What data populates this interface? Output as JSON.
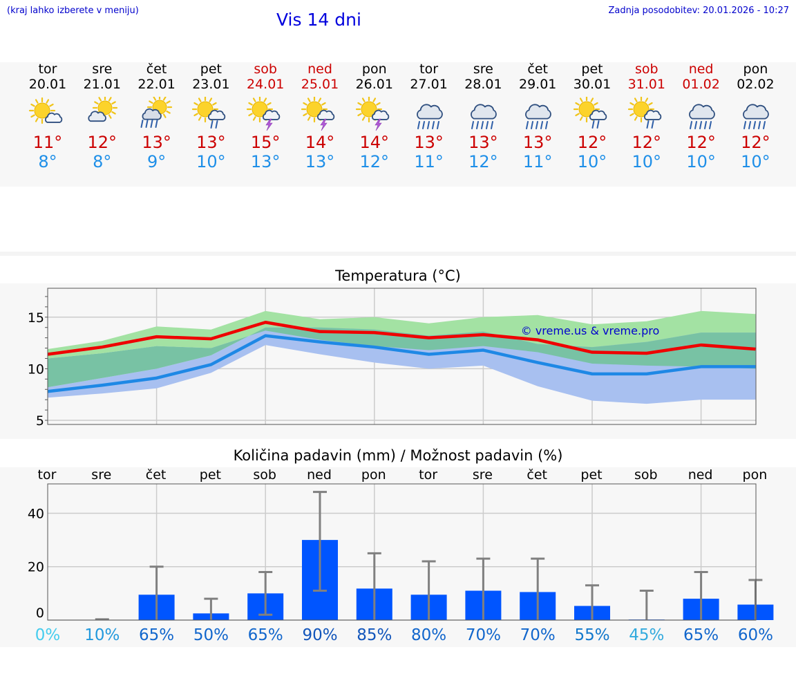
{
  "header": {
    "hint": "(kraj lahko izberete v meniju)",
    "title": "Vis 14 dni",
    "updated": "Zadnja posodobitev: 20.01.2026 - 10:27"
  },
  "days": [
    {
      "name": "tor",
      "date": "20.01",
      "icon": "sun-cloud-icon",
      "tmax": "11°",
      "tmin": "8°",
      "weekend": false
    },
    {
      "name": "sre",
      "date": "21.01",
      "icon": "cloud-sun-icon",
      "tmax": "12°",
      "tmin": "8°",
      "weekend": false
    },
    {
      "name": "čet",
      "date": "22.01",
      "icon": "sun-cloud-rain-icon",
      "tmax": "13°",
      "tmin": "9°",
      "weekend": false
    },
    {
      "name": "pet",
      "date": "23.01",
      "icon": "sun-cloud-light-rain-icon",
      "tmax": "13°",
      "tmin": "10°",
      "weekend": false
    },
    {
      "name": "sob",
      "date": "24.01",
      "icon": "sun-cloud-thunder-icon",
      "tmax": "15°",
      "tmin": "13°",
      "weekend": true
    },
    {
      "name": "ned",
      "date": "25.01",
      "icon": "sun-cloud-thunder-icon",
      "tmax": "14°",
      "tmin": "13°",
      "weekend": true
    },
    {
      "name": "pon",
      "date": "26.01",
      "icon": "sun-cloud-thunder-icon",
      "tmax": "14°",
      "tmin": "12°",
      "weekend": false
    },
    {
      "name": "tor",
      "date": "27.01",
      "icon": "rain-cloud-icon",
      "tmax": "13°",
      "tmin": "11°",
      "weekend": false
    },
    {
      "name": "sre",
      "date": "28.01",
      "icon": "rain-cloud-icon",
      "tmax": "13°",
      "tmin": "12°",
      "weekend": false
    },
    {
      "name": "čet",
      "date": "29.01",
      "icon": "rain-cloud-icon",
      "tmax": "13°",
      "tmin": "11°",
      "weekend": false
    },
    {
      "name": "pet",
      "date": "30.01",
      "icon": "sun-cloud-light-rain-icon",
      "tmax": "12°",
      "tmin": "10°",
      "weekend": false
    },
    {
      "name": "sob",
      "date": "31.01",
      "icon": "sun-cloud-light-rain-icon",
      "tmax": "12°",
      "tmin": "10°",
      "weekend": true
    },
    {
      "name": "ned",
      "date": "01.02",
      "icon": "rain-cloud-icon",
      "tmax": "12°",
      "tmin": "10°",
      "weekend": true
    },
    {
      "name": "pon",
      "date": "02.02",
      "icon": "rain-cloud-icon",
      "tmax": "12°",
      "tmin": "10°",
      "weekend": false
    }
  ],
  "colors": {
    "tmax": "#ee0000",
    "tmin": "#1e88e5",
    "tmax_band": "#a3e2a3",
    "tmin_band": "#a8c0f0",
    "overlap_band": "#78c2a4",
    "bar": "#0055ff",
    "whisker": "#808080",
    "watermark": "#0000cc"
  },
  "chart_data": [
    {
      "type": "line",
      "title": "Temperatura (°C)",
      "ylabel": "°C",
      "ylim": [
        4.6,
        17.8
      ],
      "yticks": [
        5,
        10,
        15
      ],
      "x": [
        "tor",
        "sre",
        "čet",
        "pet",
        "sob",
        "ned",
        "pon",
        "tor",
        "sre",
        "čet",
        "pet",
        "sob",
        "ned",
        "pon"
      ],
      "watermark": "© vreme.us & vreme.pro",
      "series": [
        {
          "name": "max",
          "values": [
            11.4,
            12.1,
            13.1,
            12.9,
            14.5,
            13.6,
            13.5,
            13.0,
            13.3,
            12.8,
            11.6,
            11.5,
            12.3,
            11.9
          ]
        },
        {
          "name": "max_low",
          "values": [
            11.0,
            11.5,
            12.2,
            12.0,
            13.7,
            12.8,
            12.2,
            11.8,
            12.2,
            11.6,
            10.5,
            10.3,
            10.2,
            10.0
          ]
        },
        {
          "name": "max_high",
          "values": [
            11.9,
            12.7,
            14.1,
            13.8,
            15.6,
            14.8,
            15.0,
            14.4,
            15.0,
            15.2,
            14.3,
            14.6,
            15.6,
            15.3
          ]
        },
        {
          "name": "min",
          "values": [
            7.8,
            8.4,
            9.1,
            10.4,
            13.2,
            12.6,
            12.1,
            11.4,
            11.8,
            10.6,
            9.5,
            9.5,
            10.2,
            10.2
          ]
        },
        {
          "name": "min_low",
          "values": [
            7.2,
            7.6,
            8.1,
            9.6,
            12.3,
            11.4,
            10.6,
            10.0,
            10.3,
            8.3,
            6.9,
            6.6,
            7.0,
            7.0
          ]
        },
        {
          "name": "min_high",
          "values": [
            8.2,
            9.1,
            10.0,
            11.3,
            14.0,
            14.0,
            13.8,
            13.2,
            13.6,
            12.4,
            12.1,
            12.6,
            13.5,
            13.5
          ]
        }
      ]
    },
    {
      "type": "bar",
      "title": "Količina padavin (mm) / Možnost padavin (%)",
      "ylabel": "mm",
      "ylim": [
        0,
        51
      ],
      "yticks": [
        0,
        20,
        40
      ],
      "categories": [
        "tor",
        "sre",
        "čet",
        "pet",
        "sob",
        "ned",
        "pon",
        "tor",
        "sre",
        "čet",
        "pet",
        "sob",
        "ned",
        "pon"
      ],
      "values": [
        0.0,
        0.0,
        9.5,
        2.5,
        10.0,
        30.0,
        11.8,
        9.5,
        11.0,
        10.5,
        5.3,
        0.2,
        8.0,
        5.8
      ],
      "err_low": [
        0.0,
        0.0,
        0.0,
        0.0,
        2.0,
        11.0,
        0.0,
        0.0,
        0.0,
        0.0,
        0.0,
        0.0,
        0.0,
        0.0
      ],
      "err_high": [
        0.0,
        0.3,
        20.0,
        8.0,
        18.0,
        48.0,
        25.0,
        22.0,
        23.0,
        23.0,
        13.0,
        11.0,
        18.0,
        15.0
      ],
      "probability": [
        "0%",
        "10%",
        "65%",
        "50%",
        "65%",
        "90%",
        "85%",
        "80%",
        "70%",
        "70%",
        "55%",
        "45%",
        "65%",
        "60%"
      ],
      "probability_colors": [
        "#44ccee",
        "#2299dd",
        "#1166cc",
        "#1166cc",
        "#1166cc",
        "#1155bb",
        "#1155bb",
        "#1166cc",
        "#1166cc",
        "#1166cc",
        "#1177cc",
        "#33aadd",
        "#1166cc",
        "#1166cc"
      ]
    }
  ]
}
